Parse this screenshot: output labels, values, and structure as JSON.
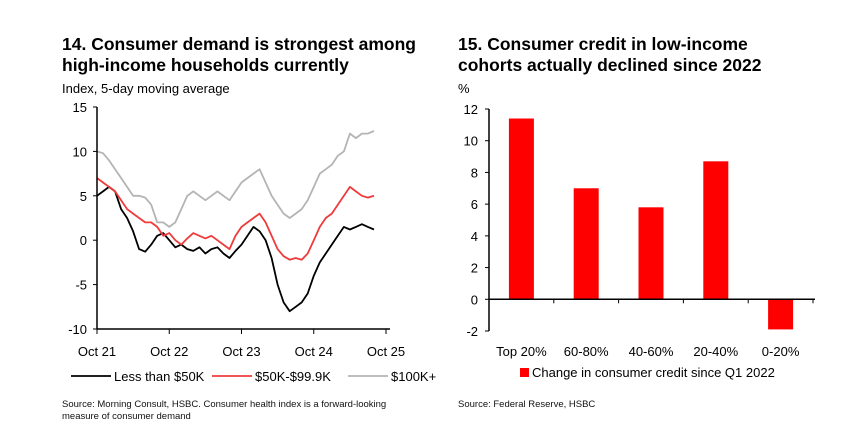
{
  "chart_data": [
    {
      "type": "line",
      "title": "14. Consumer demand is strongest among high-income households currently",
      "title_lines": [
        "14. Consumer demand is strongest among",
        "high-income households currently"
      ],
      "ylabel": "Index, 5-day moving average",
      "xlabel": "",
      "ylim": [
        -10,
        15
      ],
      "yticks": [
        15,
        10,
        5,
        0,
        -5,
        -10
      ],
      "xlim_months": [
        0,
        48
      ],
      "xticks": [
        {
          "label": "Oct 21",
          "month": 0
        },
        {
          "label": "Oct 22",
          "month": 12
        },
        {
          "label": "Oct 23",
          "month": 24
        },
        {
          "label": "Oct 24",
          "month": 36
        },
        {
          "label": "Oct 25",
          "month": 48
        }
      ],
      "x_unit": "months since Oct 2021",
      "legend_position": "bottom",
      "series": [
        {
          "name": "Less than $50K",
          "color": "#000000",
          "values": [
            5,
            5.5,
            6,
            5.5,
            3.5,
            2.5,
            1,
            -1,
            -1.3,
            -0.5,
            0.5,
            0.8,
            0,
            -0.8,
            -0.5,
            -1,
            -1.2,
            -0.8,
            -1.5,
            -1,
            -0.8,
            -1.5,
            -2,
            -1.2,
            -0.5,
            0.5,
            1.5,
            1,
            0,
            -2,
            -5,
            -7,
            -8,
            -7.5,
            -7,
            -6,
            -4,
            -2.5,
            -1.5,
            -0.5,
            0.5,
            1.5,
            1.2,
            1.5,
            1.8,
            1.5,
            1.2
          ]
        },
        {
          "name": "$50K-$99.9K",
          "color": "#ee3b3b",
          "values": [
            7,
            6.5,
            6,
            5.5,
            4.5,
            3.5,
            3,
            2.5,
            2,
            2,
            1.5,
            0.5,
            0.8,
            0,
            -0.5,
            0.2,
            0.8,
            0.5,
            0.2,
            0.5,
            0,
            -0.5,
            -1,
            0.5,
            1.5,
            2,
            2.5,
            3,
            2,
            0.5,
            -1,
            -1.8,
            -2.2,
            -2,
            -2.2,
            -1.5,
            0,
            1.5,
            2.5,
            3,
            4,
            5,
            6,
            5.5,
            5,
            4.8,
            5
          ]
        },
        {
          "name": "$100K+",
          "color": "#b4b4b4",
          "values": [
            10,
            9.8,
            9,
            8,
            7,
            6,
            5,
            5,
            4.8,
            4,
            2,
            2,
            1.5,
            2,
            3.5,
            5,
            5.5,
            5,
            4.5,
            5,
            5.5,
            5,
            4.5,
            5.5,
            6.5,
            7,
            7.5,
            8,
            6.5,
            5,
            4,
            3,
            2.5,
            3,
            3.5,
            4.5,
            6,
            7.5,
            8,
            8.5,
            9.5,
            10,
            12,
            11.5,
            12,
            12,
            12.3
          ]
        }
      ],
      "source": "Source: Morning Consult, HSBC. Consumer health index is a forward-looking measure of consumer demand",
      "source_lines": [
        "Source: Morning Consult, HSBC. Consumer health index is a forward-looking",
        "measure of consumer demand"
      ]
    },
    {
      "type": "bar",
      "title": "15. Consumer credit in low-income cohorts actually declined since 2022",
      "title_lines": [
        "15. Consumer credit in low-income",
        "cohorts actually declined since 2022"
      ],
      "ylabel": "%",
      "xlabel": "",
      "ylim": [
        -2,
        12
      ],
      "yticks": [
        12,
        10,
        8,
        6,
        4,
        2,
        0,
        -2
      ],
      "categories": [
        "Top 20%",
        "60-80%",
        "40-60%",
        "20-40%",
        "0-20%"
      ],
      "series": [
        {
          "name": "Change in consumer credit since Q1 2022",
          "color": "#ff0000",
          "values": [
            11.4,
            7.0,
            5.8,
            8.7,
            -1.9
          ]
        }
      ],
      "legend_position": "bottom",
      "source": "Source: Federal Reserve, HSBC"
    }
  ]
}
